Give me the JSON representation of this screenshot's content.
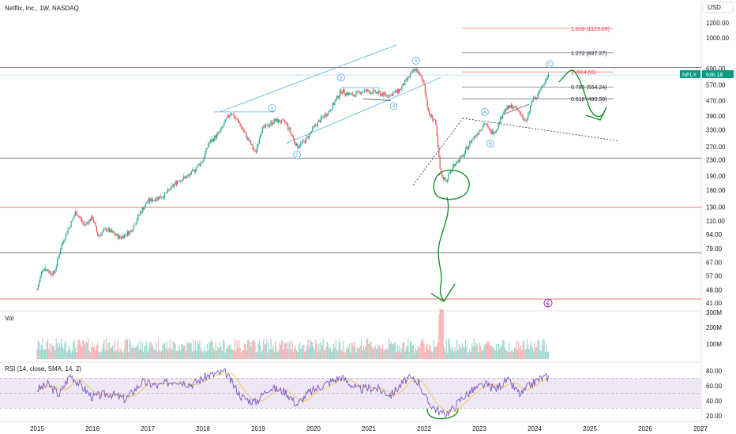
{
  "header": {
    "title": "Netflix, Inc., 1W, NASDAQ",
    "currency": "USD"
  },
  "colors": {
    "up": "#26a69a",
    "down": "#ef5350",
    "fib_red": "#f23645",
    "hline_red": "#f0766d",
    "channel": "#5aaedb",
    "annotation_green": "#0a8a1e",
    "rsi_line": "#7e57c2",
    "rsi_ma": "#f5c542",
    "rsi_band": "#ede7f6",
    "price_tag": "#089981"
  },
  "price_axis": {
    "scale": "log",
    "ticks": [
      "1200.00",
      "1000.00",
      "690.00",
      "570.00",
      "470.00",
      "390.00",
      "330.00",
      "270.00",
      "230.00",
      "190.00",
      "160.00",
      "130.00",
      "110.00",
      "94.00",
      "79.00",
      "67.00",
      "57.00",
      "48.00",
      "41.00"
    ],
    "current": {
      "ticker": "NFLX",
      "value": "636.18"
    }
  },
  "fib_levels": [
    {
      "ratio": "1.618",
      "value": "(1123.09)",
      "label": "1.618 (1123.09)",
      "price": 1123.09,
      "color": "red"
    },
    {
      "ratio": "1.272",
      "value": "(837.27)",
      "label": "1.272 (837.27)",
      "price": 837.27,
      "color": "dark"
    },
    {
      "ratio": "1",
      "value": "(664.65)",
      "label": "1 (664.65)",
      "price": 664.65,
      "color": "red"
    },
    {
      "ratio": "0.786",
      "value": "(554.24)",
      "label": "0.786 (554.24)",
      "price": 554.24,
      "color": "dark"
    },
    {
      "ratio": "0.618",
      "value": "(480.58)",
      "label": "0.618 (480.58)",
      "price": 480.58,
      "color": "dark"
    }
  ],
  "wave_labels": [
    "1",
    "2",
    "3",
    "4",
    "5",
    "A",
    "B",
    "C"
  ],
  "volume_pane": {
    "title": "Vol",
    "ticks": [
      "300M",
      "200M",
      "100M"
    ]
  },
  "rsi_pane": {
    "title": "RSI (14, close, SMA, 14, 2)",
    "ticks": [
      "80.00",
      "60.00",
      "40.00",
      "20.00"
    ]
  },
  "chart_data": {
    "type": "candlestick",
    "x_axis_years": [
      "2015",
      "2016",
      "2017",
      "2018",
      "2019",
      "2020",
      "2021",
      "2022",
      "2023",
      "2024",
      "2025",
      "2026",
      "2027"
    ],
    "price_path": [
      {
        "year": 2015.0,
        "close": 48
      },
      {
        "year": 2015.1,
        "close": 63
      },
      {
        "year": 2015.3,
        "close": 58
      },
      {
        "year": 2015.45,
        "close": 84
      },
      {
        "year": 2015.55,
        "close": 98
      },
      {
        "year": 2015.7,
        "close": 123
      },
      {
        "year": 2015.85,
        "close": 105
      },
      {
        "year": 2016.0,
        "close": 115
      },
      {
        "year": 2016.1,
        "close": 92
      },
      {
        "year": 2016.25,
        "close": 100
      },
      {
        "year": 2016.5,
        "close": 90
      },
      {
        "year": 2016.7,
        "close": 98
      },
      {
        "year": 2016.85,
        "close": 120
      },
      {
        "year": 2017.0,
        "close": 140
      },
      {
        "year": 2017.3,
        "close": 150
      },
      {
        "year": 2017.55,
        "close": 180
      },
      {
        "year": 2017.75,
        "close": 190
      },
      {
        "year": 2018.0,
        "close": 230
      },
      {
        "year": 2018.1,
        "close": 280
      },
      {
        "year": 2018.3,
        "close": 320
      },
      {
        "year": 2018.5,
        "close": 410
      },
      {
        "year": 2018.65,
        "close": 360
      },
      {
        "year": 2018.8,
        "close": 300
      },
      {
        "year": 2018.95,
        "close": 250
      },
      {
        "year": 2019.05,
        "close": 330
      },
      {
        "year": 2019.3,
        "close": 370
      },
      {
        "year": 2019.5,
        "close": 360
      },
      {
        "year": 2019.7,
        "close": 270
      },
      {
        "year": 2019.85,
        "close": 290
      },
      {
        "year": 2020.0,
        "close": 340
      },
      {
        "year": 2020.15,
        "close": 380
      },
      {
        "year": 2020.3,
        "close": 420
      },
      {
        "year": 2020.5,
        "close": 530
      },
      {
        "year": 2020.7,
        "close": 500
      },
      {
        "year": 2020.9,
        "close": 530
      },
      {
        "year": 2021.1,
        "close": 520
      },
      {
        "year": 2021.35,
        "close": 500
      },
      {
        "year": 2021.55,
        "close": 530
      },
      {
        "year": 2021.75,
        "close": 640
      },
      {
        "year": 2021.85,
        "close": 690
      },
      {
        "year": 2022.0,
        "close": 580
      },
      {
        "year": 2022.08,
        "close": 400
      },
      {
        "year": 2022.2,
        "close": 370
      },
      {
        "year": 2022.3,
        "close": 190
      },
      {
        "year": 2022.4,
        "close": 180
      },
      {
        "year": 2022.55,
        "close": 220
      },
      {
        "year": 2022.7,
        "close": 240
      },
      {
        "year": 2022.85,
        "close": 290
      },
      {
        "year": 2023.0,
        "close": 330
      },
      {
        "year": 2023.1,
        "close": 360
      },
      {
        "year": 2023.2,
        "close": 320
      },
      {
        "year": 2023.3,
        "close": 330
      },
      {
        "year": 2023.45,
        "close": 420
      },
      {
        "year": 2023.6,
        "close": 440
      },
      {
        "year": 2023.75,
        "close": 400
      },
      {
        "year": 2023.85,
        "close": 360
      },
      {
        "year": 2023.95,
        "close": 470
      },
      {
        "year": 2024.05,
        "close": 490
      },
      {
        "year": 2024.15,
        "close": 580
      },
      {
        "year": 2024.25,
        "close": 636.18
      }
    ],
    "horizontal_levels": [
      {
        "price": 700,
        "color": "dark"
      },
      {
        "price": 235,
        "color": "dark"
      },
      {
        "price": 130,
        "color": "red"
      },
      {
        "price": 75,
        "color": "dark"
      },
      {
        "price": 43,
        "color": "red"
      }
    ],
    "rsi_path": [
      {
        "year": 2015.0,
        "value": 55
      },
      {
        "year": 2015.2,
        "value": 62
      },
      {
        "year": 2015.4,
        "value": 48
      },
      {
        "year": 2015.6,
        "value": 75
      },
      {
        "year": 2015.8,
        "value": 60
      },
      {
        "year": 2016.0,
        "value": 45
      },
      {
        "year": 2016.3,
        "value": 50
      },
      {
        "year": 2016.6,
        "value": 42
      },
      {
        "year": 2016.9,
        "value": 65
      },
      {
        "year": 2017.2,
        "value": 60
      },
      {
        "year": 2017.5,
        "value": 68
      },
      {
        "year": 2017.8,
        "value": 62
      },
      {
        "year": 2018.1,
        "value": 74
      },
      {
        "year": 2018.4,
        "value": 78
      },
      {
        "year": 2018.7,
        "value": 45
      },
      {
        "year": 2018.95,
        "value": 38
      },
      {
        "year": 2019.2,
        "value": 58
      },
      {
        "year": 2019.5,
        "value": 52
      },
      {
        "year": 2019.7,
        "value": 35
      },
      {
        "year": 2019.9,
        "value": 50
      },
      {
        "year": 2020.2,
        "value": 62
      },
      {
        "year": 2020.5,
        "value": 72
      },
      {
        "year": 2020.8,
        "value": 55
      },
      {
        "year": 2021.1,
        "value": 58
      },
      {
        "year": 2021.4,
        "value": 48
      },
      {
        "year": 2021.7,
        "value": 70
      },
      {
        "year": 2021.9,
        "value": 66
      },
      {
        "year": 2022.05,
        "value": 40
      },
      {
        "year": 2022.2,
        "value": 30
      },
      {
        "year": 2022.35,
        "value": 22
      },
      {
        "year": 2022.5,
        "value": 28
      },
      {
        "year": 2022.7,
        "value": 45
      },
      {
        "year": 2022.9,
        "value": 55
      },
      {
        "year": 2023.1,
        "value": 62
      },
      {
        "year": 2023.3,
        "value": 56
      },
      {
        "year": 2023.5,
        "value": 68
      },
      {
        "year": 2023.75,
        "value": 48
      },
      {
        "year": 2023.9,
        "value": 60
      },
      {
        "year": 2024.1,
        "value": 70
      },
      {
        "year": 2024.25,
        "value": 72
      }
    ]
  }
}
